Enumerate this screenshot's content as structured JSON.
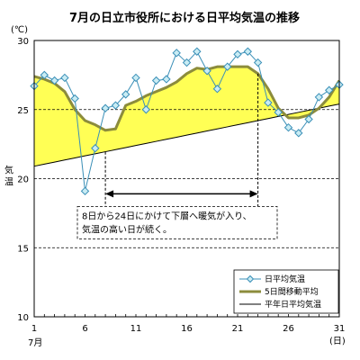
{
  "chart_data": {
    "type": "line",
    "title": "7月の日立市役所における日平均気温の推移",
    "ylabel": "気温",
    "yunit": "(℃)",
    "xunit": "(日)",
    "xlabel_month": "7月",
    "xlim": [
      1,
      31
    ],
    "ylim": [
      10,
      30
    ],
    "xticks": [
      1,
      6,
      11,
      16,
      21,
      26,
      31
    ],
    "yticks": [
      10,
      15,
      20,
      25,
      30
    ],
    "grid": "horizontal-dashed",
    "legend_position": "bottom-right",
    "x": [
      1,
      2,
      3,
      4,
      5,
      6,
      7,
      8,
      9,
      10,
      11,
      12,
      13,
      14,
      15,
      16,
      17,
      18,
      19,
      20,
      21,
      22,
      23,
      24,
      25,
      26,
      27,
      28,
      29,
      30,
      31
    ],
    "series": [
      {
        "name": "日平均気温",
        "color": "#3a8fb7",
        "marker": "diamond",
        "values": [
          26.7,
          27.5,
          27.1,
          27.3,
          25.8,
          19.1,
          22.2,
          25.1,
          25.3,
          26.1,
          27.3,
          25.0,
          27.1,
          27.2,
          29.1,
          28.4,
          29.2,
          27.8,
          26.5,
          28.1,
          29.0,
          29.2,
          28.4,
          25.5,
          24.8,
          23.7,
          23.3,
          24.3,
          25.9,
          26.4,
          26.8
        ]
      },
      {
        "name": "5日間移動平均",
        "color": "#8c8c3c",
        "values": [
          27.4,
          27.2,
          26.9,
          26.3,
          25.0,
          24.2,
          23.9,
          23.5,
          23.6,
          25.3,
          25.6,
          26.0,
          26.3,
          26.6,
          27.0,
          27.6,
          28.0,
          27.9,
          28.1,
          28.1,
          28.1,
          28.1,
          27.6,
          26.5,
          25.1,
          24.4,
          24.4,
          24.6,
          25.1,
          25.9,
          27.1
        ]
      },
      {
        "name": "平年日平均気温",
        "color": "#000000",
        "values": [
          20.9,
          21.05,
          21.2,
          21.35,
          21.5,
          21.65,
          21.8,
          21.95,
          22.1,
          22.25,
          22.4,
          22.55,
          22.7,
          22.85,
          23.0,
          23.15,
          23.3,
          23.45,
          23.6,
          23.75,
          23.9,
          24.05,
          24.2,
          24.35,
          24.5,
          24.65,
          24.8,
          24.95,
          25.1,
          25.25,
          25.4
        ]
      }
    ],
    "fill_between": {
      "upper": "5日間移動平均",
      "lower": "平年日平均気温",
      "color": "#ffff55"
    },
    "annotation": {
      "line1": "8日から24日にかけて下層へ暖気が入り、",
      "line2": "気温の高い日が続く。",
      "span_x": [
        8,
        23
      ],
      "span_y": 18.9
    }
  }
}
